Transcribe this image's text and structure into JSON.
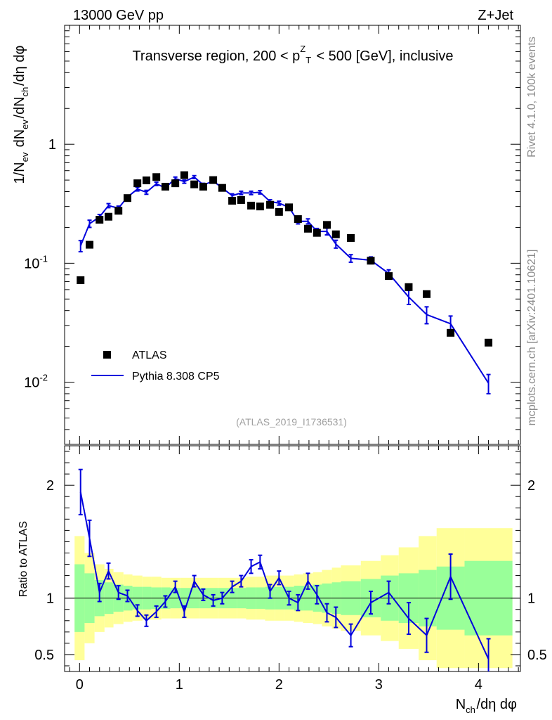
{
  "header": {
    "energy_label": "13000 GeV pp",
    "process_label": "Z+Jet",
    "side_top": "Rivet 4.1.0,  100k events",
    "side_bottom": "mcplots.cern.ch [arXiv:2401.10621]",
    "analysis_id": "(ATLAS_2019_I1736531)"
  },
  "chart_data": {
    "type": "scatter",
    "title": "Transverse region, 200 < p_T^Z < 500 [GeV], inclusive",
    "xlabel": "N_ch/dη dφ",
    "ylabel": "1/N_ev dN_ev/dN_ch/dη dφ",
    "ratio_ylabel": "Ratio to ATLAS",
    "xlim": [
      -0.15,
      4.42
    ],
    "ylim": [
      0.003,
      10
    ],
    "yscale": "log",
    "ratio_ylim": [
      0.35,
      2.35
    ],
    "x_ticks": [
      "0",
      "1",
      "2",
      "3",
      "4"
    ],
    "y_ticks": [
      "10^-2",
      "10^-1",
      "1"
    ],
    "ratio_ticks": [
      "0.5",
      "1",
      "2"
    ],
    "legend": [
      {
        "label": "ATLAS",
        "marker": "square",
        "color": "#000000"
      },
      {
        "label": "Pythia 8.308 CP5",
        "marker": "line",
        "color": "#0000dd"
      }
    ],
    "legend_position": "lower-left",
    "atlas": {
      "x": [
        0.01,
        0.1,
        0.2,
        0.29,
        0.39,
        0.48,
        0.58,
        0.67,
        0.77,
        0.86,
        0.96,
        1.05,
        1.15,
        1.24,
        1.34,
        1.43,
        1.53,
        1.62,
        1.72,
        1.81,
        1.91,
        2.0,
        2.1,
        2.19,
        2.29,
        2.38,
        2.48,
        2.57,
        2.72,
        2.92,
        3.1,
        3.3,
        3.48,
        3.72,
        4.1
      ],
      "y": [
        0.072,
        0.143,
        0.232,
        0.246,
        0.276,
        0.353,
        0.47,
        0.497,
        0.53,
        0.44,
        0.47,
        0.55,
        0.46,
        0.44,
        0.5,
        0.43,
        0.335,
        0.34,
        0.305,
        0.3,
        0.31,
        0.27,
        0.295,
        0.235,
        0.195,
        0.18,
        0.21,
        0.175,
        0.163,
        0.105,
        0.078,
        0.063,
        0.055,
        0.026,
        0.0215
      ]
    },
    "pythia": {
      "x": [
        0.01,
        0.1,
        0.2,
        0.29,
        0.39,
        0.48,
        0.58,
        0.67,
        0.77,
        0.86,
        0.96,
        1.05,
        1.15,
        1.24,
        1.34,
        1.43,
        1.53,
        1.62,
        1.72,
        1.81,
        1.91,
        2.0,
        2.1,
        2.19,
        2.29,
        2.38,
        2.48,
        2.57,
        2.72,
        2.92,
        3.1,
        3.3,
        3.48,
        3.72,
        4.1
      ],
      "y": [
        0.14,
        0.215,
        0.245,
        0.305,
        0.29,
        0.36,
        0.42,
        0.395,
        0.465,
        0.43,
        0.515,
        0.485,
        0.53,
        0.455,
        0.49,
        0.43,
        0.37,
        0.39,
        0.39,
        0.395,
        0.33,
        0.32,
        0.295,
        0.225,
        0.225,
        0.185,
        0.185,
        0.145,
        0.11,
        0.106,
        0.082,
        0.052,
        0.037,
        0.031,
        0.0098
      ],
      "yerr": [
        0.015,
        0.015,
        0.012,
        0.012,
        0.012,
        0.012,
        0.015,
        0.015,
        0.015,
        0.015,
        0.015,
        0.015,
        0.015,
        0.015,
        0.015,
        0.015,
        0.013,
        0.013,
        0.013,
        0.013,
        0.012,
        0.012,
        0.012,
        0.011,
        0.011,
        0.011,
        0.012,
        0.011,
        0.008,
        0.007,
        0.006,
        0.007,
        0.006,
        0.005,
        0.0018
      ]
    },
    "ratio": {
      "x": [
        0.01,
        0.1,
        0.2,
        0.29,
        0.39,
        0.48,
        0.58,
        0.67,
        0.77,
        0.86,
        0.96,
        1.05,
        1.15,
        1.24,
        1.34,
        1.43,
        1.53,
        1.62,
        1.72,
        1.81,
        1.91,
        2.0,
        2.1,
        2.19,
        2.29,
        2.38,
        2.48,
        2.57,
        2.72,
        2.92,
        3.1,
        3.3,
        3.48,
        3.72,
        4.1
      ],
      "y": [
        1.94,
        1.53,
        1.05,
        1.24,
        1.05,
        1.02,
        0.89,
        0.8,
        0.88,
        0.97,
        1.1,
        0.88,
        1.15,
        1.03,
        0.98,
        1.0,
        1.1,
        1.15,
        1.28,
        1.32,
        1.06,
        1.18,
        1.0,
        0.96,
        1.15,
        1.03,
        0.87,
        0.83,
        0.67,
        0.96,
        1.05,
        0.82,
        0.67,
        1.19,
        0.46
      ],
      "yerr": [
        0.2,
        0.16,
        0.08,
        0.07,
        0.06,
        0.05,
        0.05,
        0.05,
        0.05,
        0.05,
        0.05,
        0.05,
        0.05,
        0.05,
        0.05,
        0.05,
        0.05,
        0.05,
        0.06,
        0.06,
        0.06,
        0.06,
        0.06,
        0.07,
        0.07,
        0.08,
        0.08,
        0.09,
        0.1,
        0.1,
        0.1,
        0.14,
        0.15,
        0.2,
        0.18
      ],
      "band_edges": [
        -0.05,
        0.05,
        0.15,
        0.25,
        0.34,
        0.44,
        0.53,
        0.63,
        0.72,
        0.82,
        0.91,
        1.01,
        1.1,
        1.2,
        1.29,
        1.39,
        1.48,
        1.58,
        1.67,
        1.77,
        1.86,
        1.96,
        2.05,
        2.15,
        2.24,
        2.34,
        2.43,
        2.53,
        2.62,
        2.82,
        3.02,
        3.2,
        3.4,
        3.58,
        3.86,
        4.34
      ],
      "band_stat": [
        0.3,
        0.22,
        0.16,
        0.14,
        0.12,
        0.11,
        0.1,
        0.1,
        0.095,
        0.095,
        0.09,
        0.09,
        0.09,
        0.09,
        0.09,
        0.09,
        0.09,
        0.09,
        0.095,
        0.095,
        0.1,
        0.1,
        0.1,
        0.11,
        0.11,
        0.12,
        0.13,
        0.14,
        0.15,
        0.17,
        0.2,
        0.22,
        0.25,
        0.28,
        0.33
      ],
      "band_total": [
        0.55,
        0.4,
        0.3,
        0.26,
        0.23,
        0.21,
        0.2,
        0.19,
        0.19,
        0.18,
        0.18,
        0.18,
        0.18,
        0.18,
        0.18,
        0.18,
        0.18,
        0.18,
        0.19,
        0.19,
        0.2,
        0.2,
        0.2,
        0.21,
        0.22,
        0.23,
        0.25,
        0.27,
        0.29,
        0.33,
        0.38,
        0.45,
        0.55,
        0.62,
        0.62
      ]
    }
  }
}
